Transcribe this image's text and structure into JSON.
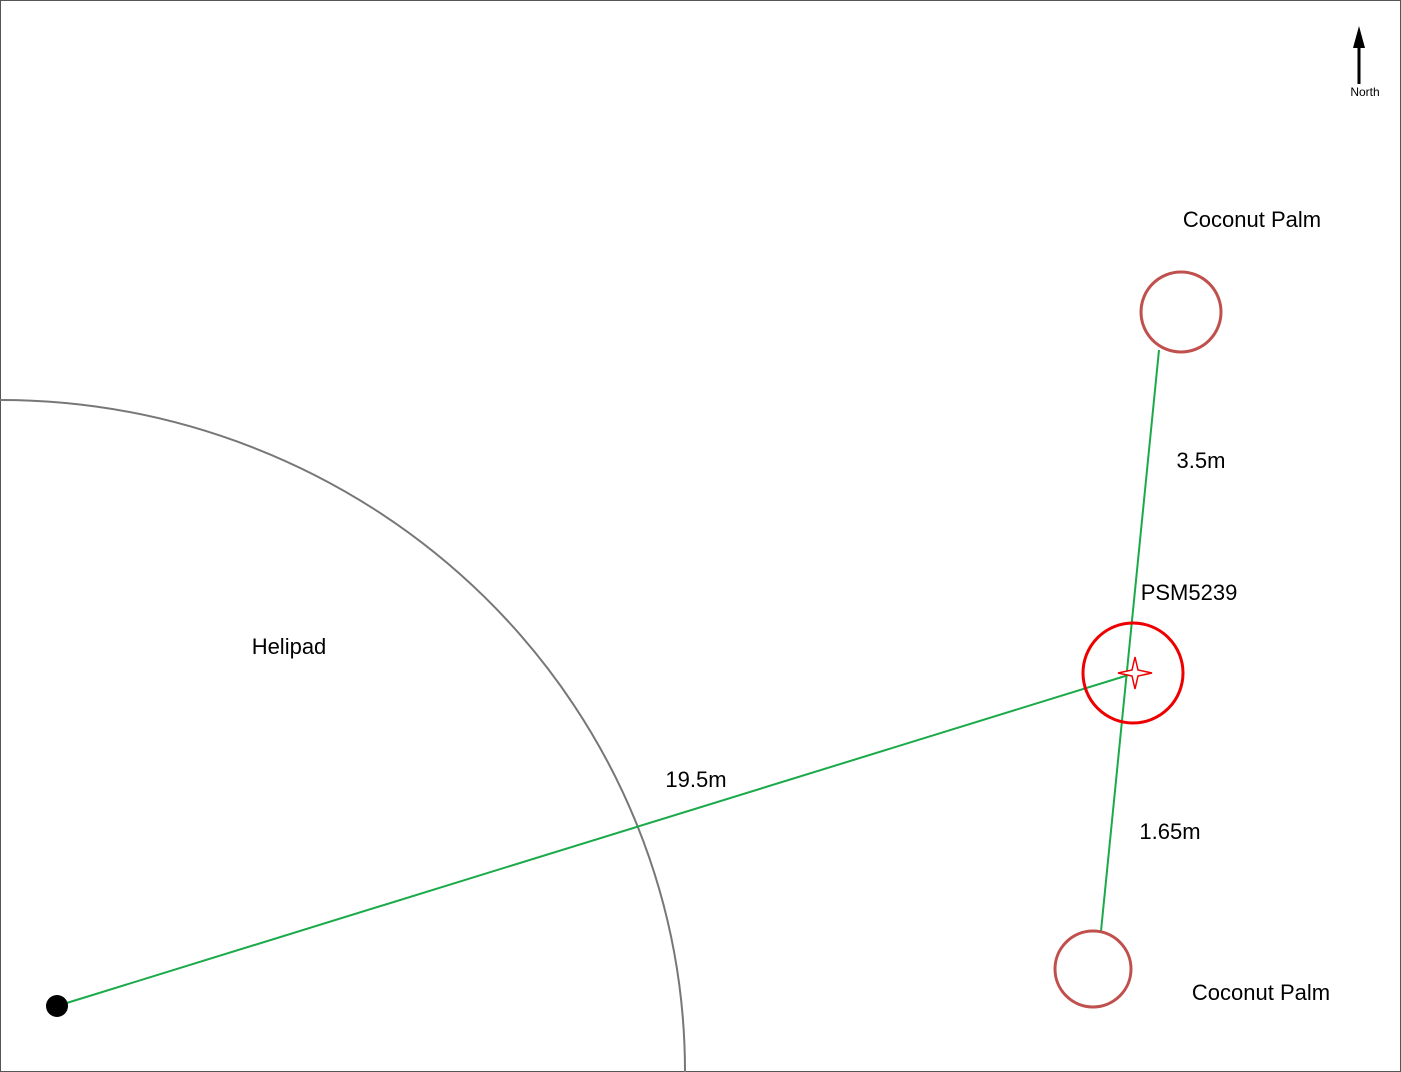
{
  "north": "North",
  "area": {
    "label": "Helipad"
  },
  "trees": [
    {
      "label": "Coconut Palm"
    },
    {
      "label": "Coconut Palm"
    }
  ],
  "asset": {
    "label": "PSM5239"
  },
  "distances": [
    "3.5m",
    "1.65m",
    "19.5m"
  ]
}
